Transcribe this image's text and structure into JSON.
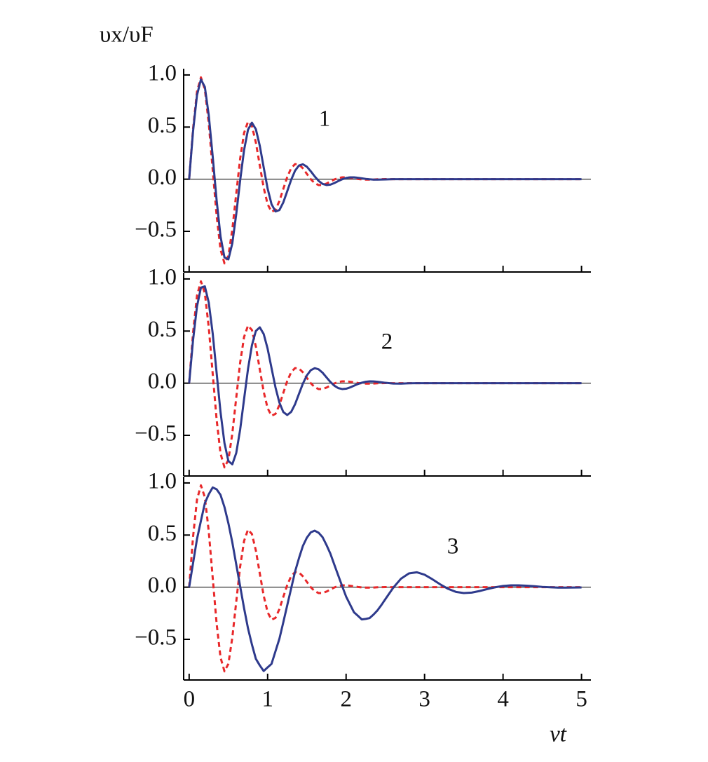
{
  "chart_data": [
    {
      "type": "line",
      "ylabel": "υx/υF",
      "annotation": "1",
      "xlim": [
        -0.07,
        5.12
      ],
      "ylim": [
        -0.89,
        1.06
      ],
      "xticks": [
        0,
        1,
        2,
        3,
        4,
        5
      ],
      "yticks": [
        {
          "value": -0.5,
          "label": "−0.5"
        },
        {
          "value": 0,
          "label": "0.0"
        },
        0.5,
        {
          "value": 1,
          "label": "1.0"
        }
      ],
      "x": [
        0,
        0.05,
        0.1,
        0.15,
        0.2,
        0.25,
        0.3,
        0.35,
        0.4,
        0.45,
        0.5,
        0.55,
        0.6,
        0.65,
        0.7,
        0.75,
        0.8,
        0.85,
        0.9,
        0.95,
        1,
        1.05,
        1.1,
        1.15,
        1.2,
        1.25,
        1.3,
        1.35,
        1.4,
        1.45,
        1.5,
        1.55,
        1.6,
        1.65,
        1.7,
        1.75,
        1.8,
        1.85,
        1.9,
        1.95,
        2,
        2.05,
        2.1,
        2.15,
        2.2,
        2.25,
        2.3,
        2.35,
        2.4,
        2.45,
        2.5,
        2.6,
        2.7,
        2.8,
        2.9,
        3,
        3.1,
        3.2,
        3.3,
        3.4,
        3.5,
        3.6,
        3.7,
        3.8,
        3.9,
        4,
        4.1,
        4.2,
        4.3,
        4.4,
        4.5,
        4.6,
        4.7,
        4.8,
        4.9,
        5
      ],
      "series": [
        {
          "color": "#e8282a",
          "dashed": true,
          "values": [
            0,
            0.485,
            0.84,
            0.977,
            0.863,
            0.535,
            0.092,
            -0.349,
            -0.674,
            -0.807,
            -0.735,
            -0.483,
            -0.14,
            0.198,
            0.444,
            0.552,
            0.51,
            0.352,
            0.133,
            -0.082,
            -0.24,
            -0.312,
            -0.294,
            -0.21,
            -0.093,
            0.021,
            0.106,
            0.145,
            0.141,
            0.104,
            0.051,
            0,
            -0.038,
            -0.056,
            -0.056,
            -0.042,
            -0.022,
            -0.003,
            0.011,
            0.018,
            0.018,
            0.014,
            0.008,
            0.002,
            -0.002,
            -0.004,
            -0.004,
            -0.003,
            -0.001,
            0,
            0.001,
            0,
            0,
            0,
            0,
            0,
            0,
            0,
            0,
            0,
            0,
            0,
            0,
            0,
            0,
            0,
            0,
            0,
            0,
            0,
            0,
            0,
            0,
            0,
            0,
            0
          ]
        },
        {
          "color": "#2e3a8c",
          "dashed": false,
          "values": [
            0,
            0.462,
            0.806,
            0.957,
            0.885,
            0.613,
            0.219,
            -0.202,
            -0.55,
            -0.75,
            -0.769,
            -0.615,
            -0.336,
            -0.011,
            0.28,
            0.475,
            0.542,
            0.48,
            0.321,
            0.113,
            -0.09,
            -0.24,
            -0.309,
            -0.296,
            -0.222,
            -0.115,
            -0.006,
            0.082,
            0.132,
            0.143,
            0.12,
            0.076,
            0.027,
            -0.016,
            -0.045,
            -0.056,
            -0.052,
            -0.037,
            -0.018,
            -0.001,
            0.012,
            0.018,
            0.018,
            0.014,
            0.009,
            0.003,
            -0.001,
            -0.004,
            -0.004,
            -0.003,
            -0.002,
            0,
            0,
            0,
            0,
            0,
            0,
            0,
            0,
            0,
            0,
            0,
            0,
            0,
            0,
            0,
            0,
            0,
            0,
            0,
            0,
            0,
            0,
            0,
            0,
            0
          ]
        }
      ]
    },
    {
      "type": "line",
      "annotation": "2",
      "xlim": [
        -0.07,
        5.12
      ],
      "ylim": [
        -0.89,
        1.06
      ],
      "xticks": [
        0,
        1,
        2,
        3,
        4,
        5
      ],
      "yticks": [
        {
          "value": -0.5,
          "label": "−0.5"
        },
        {
          "value": 0,
          "label": "0.0"
        },
        0.5,
        {
          "value": 1,
          "label": "1.0"
        }
      ],
      "x": [
        0,
        0.05,
        0.1,
        0.15,
        0.2,
        0.25,
        0.3,
        0.35,
        0.4,
        0.45,
        0.5,
        0.55,
        0.6,
        0.65,
        0.7,
        0.75,
        0.8,
        0.85,
        0.9,
        0.95,
        1,
        1.05,
        1.1,
        1.15,
        1.2,
        1.25,
        1.3,
        1.35,
        1.4,
        1.45,
        1.5,
        1.55,
        1.6,
        1.65,
        1.7,
        1.75,
        1.8,
        1.85,
        1.9,
        1.95,
        2,
        2.05,
        2.1,
        2.15,
        2.2,
        2.25,
        2.3,
        2.35,
        2.4,
        2.45,
        2.5,
        2.6,
        2.7,
        2.8,
        2.9,
        3,
        3.1,
        3.2,
        3.3,
        3.4,
        3.5,
        3.6,
        3.7,
        3.8,
        3.9,
        4,
        4.1,
        4.2,
        4.3,
        4.4,
        4.5,
        4.6,
        4.7,
        4.8,
        4.9,
        5
      ],
      "series": [
        {
          "color": "#e8282a",
          "dashed": true,
          "values": [
            0,
            0.485,
            0.84,
            0.977,
            0.863,
            0.535,
            0.092,
            -0.349,
            -0.674,
            -0.807,
            -0.735,
            -0.483,
            -0.14,
            0.198,
            0.444,
            0.552,
            0.51,
            0.352,
            0.133,
            -0.082,
            -0.24,
            -0.312,
            -0.294,
            -0.21,
            -0.093,
            0.021,
            0.106,
            0.145,
            0.141,
            0.104,
            0.051,
            0,
            -0.038,
            -0.056,
            -0.056,
            -0.042,
            -0.022,
            -0.003,
            0.011,
            0.018,
            0.018,
            0.014,
            0.008,
            0.002,
            -0.002,
            -0.004,
            -0.004,
            -0.003,
            -0.001,
            0,
            0.001,
            0,
            0,
            0,
            0,
            0,
            0,
            0,
            0,
            0,
            0,
            0,
            0,
            0,
            0,
            0,
            0,
            0,
            0,
            0,
            0,
            0,
            0,
            0,
            0,
            0
          ]
        },
        {
          "color": "#2e3a8c",
          "dashed": false,
          "values": [
            0,
            0.415,
            0.737,
            0.917,
            0.929,
            0.773,
            0.478,
            0.1,
            -0.278,
            -0.574,
            -0.747,
            -0.778,
            -0.67,
            -0.445,
            -0.152,
            0.137,
            0.364,
            0.501,
            0.536,
            0.472,
            0.331,
            0.144,
            -0.04,
            -0.186,
            -0.277,
            -0.305,
            -0.275,
            -0.201,
            -0.101,
            -0.003,
            0.075,
            0.125,
            0.144,
            0.133,
            0.101,
            0.056,
            0.012,
            -0.024,
            -0.047,
            -0.056,
            -0.053,
            -0.041,
            -0.024,
            -0.008,
            0.005,
            0.014,
            0.018,
            0.017,
            0.014,
            0.009,
            0.004,
            -0.003,
            -0.004,
            -0.001,
            0,
            0,
            0,
            0,
            0,
            0,
            0,
            0,
            0,
            0,
            0,
            0,
            0,
            0,
            0,
            0,
            0,
            0,
            0,
            0,
            0,
            0
          ]
        }
      ]
    },
    {
      "type": "line",
      "annotation": "3",
      "xlabel": "vt",
      "xlim": [
        -0.07,
        5.12
      ],
      "ylim": [
        -0.89,
        1.06
      ],
      "xticks": [
        0,
        1,
        2,
        3,
        4,
        5
      ],
      "yticks": [
        {
          "value": -0.5,
          "label": "−0.5"
        },
        {
          "value": 0,
          "label": "0.0"
        },
        0.5,
        {
          "value": 1,
          "label": "1.0"
        }
      ],
      "x": [
        0,
        0.05,
        0.1,
        0.15,
        0.2,
        0.25,
        0.3,
        0.35,
        0.4,
        0.45,
        0.5,
        0.55,
        0.6,
        0.65,
        0.7,
        0.75,
        0.8,
        0.85,
        0.9,
        0.95,
        1,
        1.05,
        1.1,
        1.15,
        1.2,
        1.25,
        1.3,
        1.35,
        1.4,
        1.45,
        1.5,
        1.55,
        1.6,
        1.65,
        1.7,
        1.75,
        1.8,
        1.85,
        1.9,
        1.95,
        2,
        2.05,
        2.1,
        2.15,
        2.2,
        2.25,
        2.3,
        2.35,
        2.4,
        2.45,
        2.5,
        2.6,
        2.7,
        2.8,
        2.9,
        3,
        3.1,
        3.2,
        3.3,
        3.4,
        3.5,
        3.6,
        3.7,
        3.8,
        3.9,
        4,
        4.1,
        4.2,
        4.3,
        4.4,
        4.5,
        4.6,
        4.7,
        4.8,
        4.9,
        5
      ],
      "series": [
        {
          "color": "#e8282a",
          "dashed": true,
          "values": [
            0,
            0.485,
            0.84,
            0.977,
            0.863,
            0.535,
            0.092,
            -0.349,
            -0.674,
            -0.807,
            -0.735,
            -0.483,
            -0.14,
            0.198,
            0.444,
            0.552,
            0.51,
            0.352,
            0.133,
            -0.082,
            -0.24,
            -0.312,
            -0.294,
            -0.21,
            -0.093,
            0.021,
            0.106,
            0.145,
            0.141,
            0.104,
            0.051,
            0,
            -0.038,
            -0.056,
            -0.056,
            -0.042,
            -0.022,
            -0.003,
            0.011,
            0.018,
            0.018,
            0.014,
            0.008,
            0.002,
            -0.002,
            -0.004,
            -0.004,
            -0.003,
            -0.001,
            0,
            0.001,
            0,
            0,
            0,
            0,
            0,
            0,
            0,
            0,
            0,
            0,
            0,
            0,
            0,
            0,
            0,
            0,
            0,
            0,
            0,
            0,
            0,
            0,
            0,
            0,
            0
          ]
        },
        {
          "color": "#2e3a8c",
          "dashed": false,
          "values": [
            0,
            0.231,
            0.462,
            0.637,
            0.806,
            0.892,
            0.957,
            0.939,
            0.885,
            0.769,
            0.613,
            0.43,
            0.219,
            0.008,
            -0.202,
            -0.395,
            -0.55,
            -0.687,
            -0.75,
            -0.804,
            -0.769,
            -0.735,
            -0.615,
            -0.495,
            -0.336,
            -0.173,
            -0.011,
            0.15,
            0.28,
            0.397,
            0.475,
            0.526,
            0.542,
            0.522,
            0.48,
            0.405,
            0.321,
            0.216,
            0.113,
            0.01,
            -0.09,
            -0.165,
            -0.24,
            -0.274,
            -0.309,
            -0.304,
            -0.296,
            -0.262,
            -0.222,
            -0.171,
            -0.115,
            -0.006,
            0.082,
            0.132,
            0.143,
            0.12,
            0.076,
            0.027,
            -0.016,
            -0.045,
            -0.056,
            -0.052,
            -0.037,
            -0.018,
            -0.001,
            0.012,
            0.018,
            0.018,
            0.014,
            0.009,
            0.003,
            -0.001,
            -0.004,
            -0.004,
            -0.003,
            -0.002
          ]
        }
      ]
    }
  ]
}
